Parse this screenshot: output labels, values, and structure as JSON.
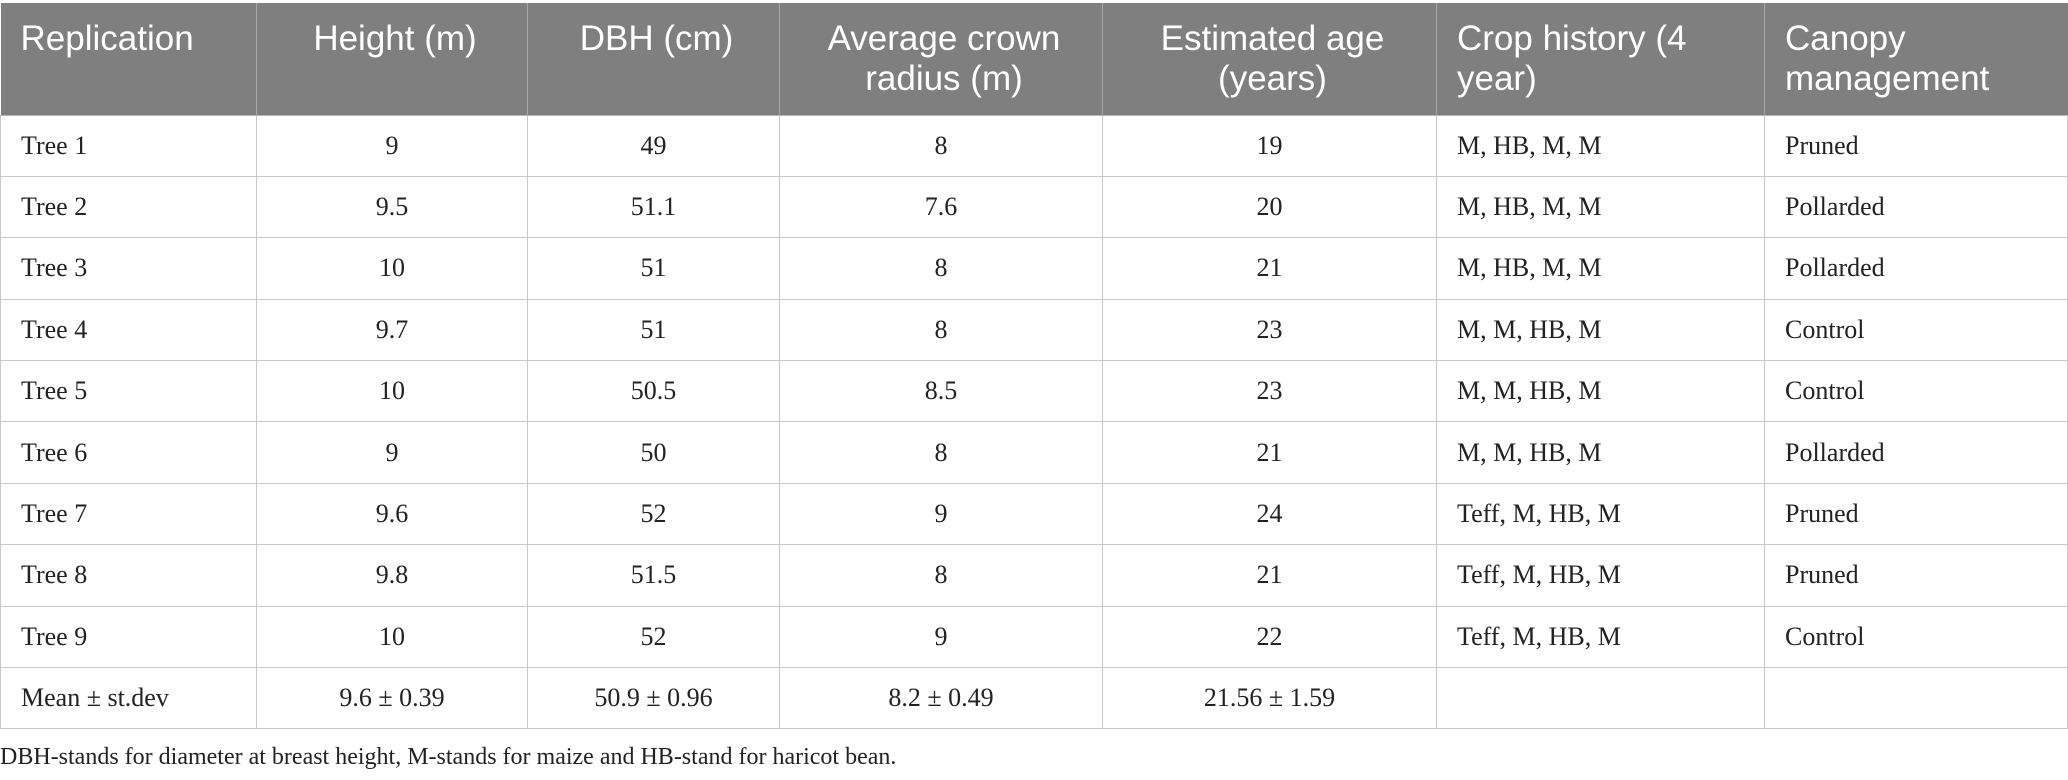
{
  "table": {
    "columns": [
      "Replication",
      "Height (m)",
      "DBH (cm)",
      "Average crown radius (m)",
      "Estimated age (years)",
      "Crop history (4 year)",
      "Canopy management"
    ],
    "rows": [
      [
        "Tree 1",
        "9",
        "49",
        "8",
        "19",
        "M, HB, M, M",
        "Pruned"
      ],
      [
        "Tree 2",
        "9.5",
        "51.1",
        "7.6",
        "20",
        "M, HB, M, M",
        "Pollarded"
      ],
      [
        "Tree 3",
        "10",
        "51",
        "8",
        "21",
        "M, HB, M, M",
        "Pollarded"
      ],
      [
        "Tree 4",
        "9.7",
        "51",
        "8",
        "23",
        "M, M, HB, M",
        "Control"
      ],
      [
        "Tree 5",
        "10",
        "50.5",
        "8.5",
        "23",
        "M, M, HB, M",
        "Control"
      ],
      [
        "Tree 6",
        "9",
        "50",
        "8",
        "21",
        "M, M, HB, M",
        "Pollarded"
      ],
      [
        "Tree 7",
        "9.6",
        "52",
        "9",
        "24",
        "Teff, M, HB, M",
        "Pruned"
      ],
      [
        "Tree 8",
        "9.8",
        "51.5",
        "8",
        "21",
        "Teff, M, HB, M",
        "Pruned"
      ],
      [
        "Tree 9",
        "10",
        "52",
        "9",
        "22",
        "Teff, M, HB, M",
        "Control"
      ],
      [
        "Mean ± st.dev",
        "9.6 ± 0.39",
        "50.9 ± 0.96",
        "8.2 ± 0.49",
        "21.56 ± 1.59",
        "",
        ""
      ]
    ]
  },
  "footnote": "DBH-stands for diameter at breast height, M-stands for maize and HB-stand for haricot bean."
}
